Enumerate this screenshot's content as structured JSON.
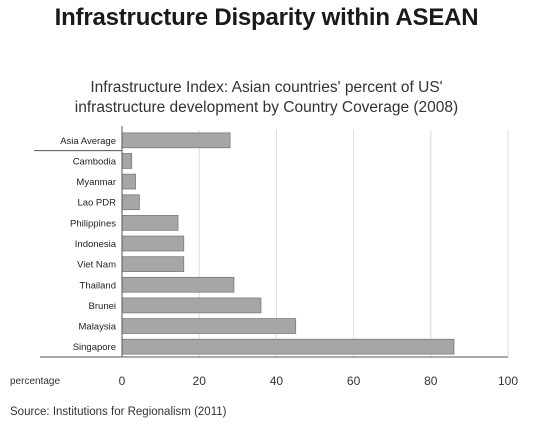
{
  "title": "Infrastructure Disparity within ASEAN",
  "subtitle_lines": [
    "Infrastructure Index: Asian countries' percent of US'",
    "infrastructure development by Country Coverage  (2008)"
  ],
  "source": "Source: Institutions for Regionalism (2011)",
  "chart_data": {
    "type": "bar",
    "orientation": "horizontal",
    "title": "Infrastructure Index: Asian countries' percent of US' infrastructure development by Country Coverage  (2008)",
    "xlabel": "percentage",
    "ylabel": "",
    "xlim": [
      0,
      100
    ],
    "xticks": [
      0,
      20,
      40,
      60,
      80,
      100
    ],
    "grid": true,
    "bar_color": "#a6a6a6",
    "bar_edge_color": "#7a7a7a",
    "categories": [
      "Asia Average",
      "Cambodia",
      "Myanmar",
      "Lao PDR",
      "Philippines",
      "Indonesia",
      "Viet Nam",
      "Thailand",
      "Brunei",
      "Malaysia",
      "Singapore"
    ],
    "values": [
      28,
      2.5,
      3.5,
      4.5,
      14.5,
      16,
      16,
      29,
      36,
      45,
      86
    ]
  }
}
